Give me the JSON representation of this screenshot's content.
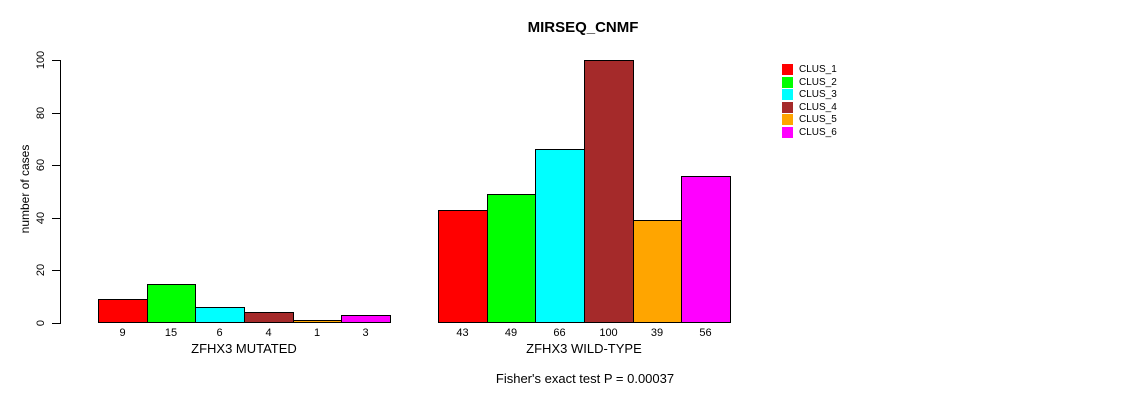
{
  "chart_data": {
    "type": "bar",
    "title": "MIRSEQ_CNMF",
    "ylabel": "number of cases",
    "xlabel": "",
    "ylim": [
      0,
      100
    ],
    "yticks": [
      0,
      20,
      40,
      60,
      80,
      100
    ],
    "grid": false,
    "legend_position": "top-right",
    "categories": [
      "CLUS_1",
      "CLUS_2",
      "CLUS_3",
      "CLUS_4",
      "CLUS_5",
      "CLUS_6"
    ],
    "colors": [
      "#ff0000",
      "#00ff00",
      "#00ffff",
      "#a52a2a",
      "#ffa500",
      "#ff00ff"
    ],
    "groups": [
      {
        "label": "ZFHX3 MUTATED",
        "values": [
          9,
          15,
          6,
          4,
          1,
          3
        ]
      },
      {
        "label": "ZFHX3 WILD-TYPE",
        "values": [
          43,
          49,
          66,
          100,
          39,
          56
        ]
      }
    ],
    "bar_value_labels_shown": true,
    "caption": "Fisher's exact test P = 0.00037"
  }
}
